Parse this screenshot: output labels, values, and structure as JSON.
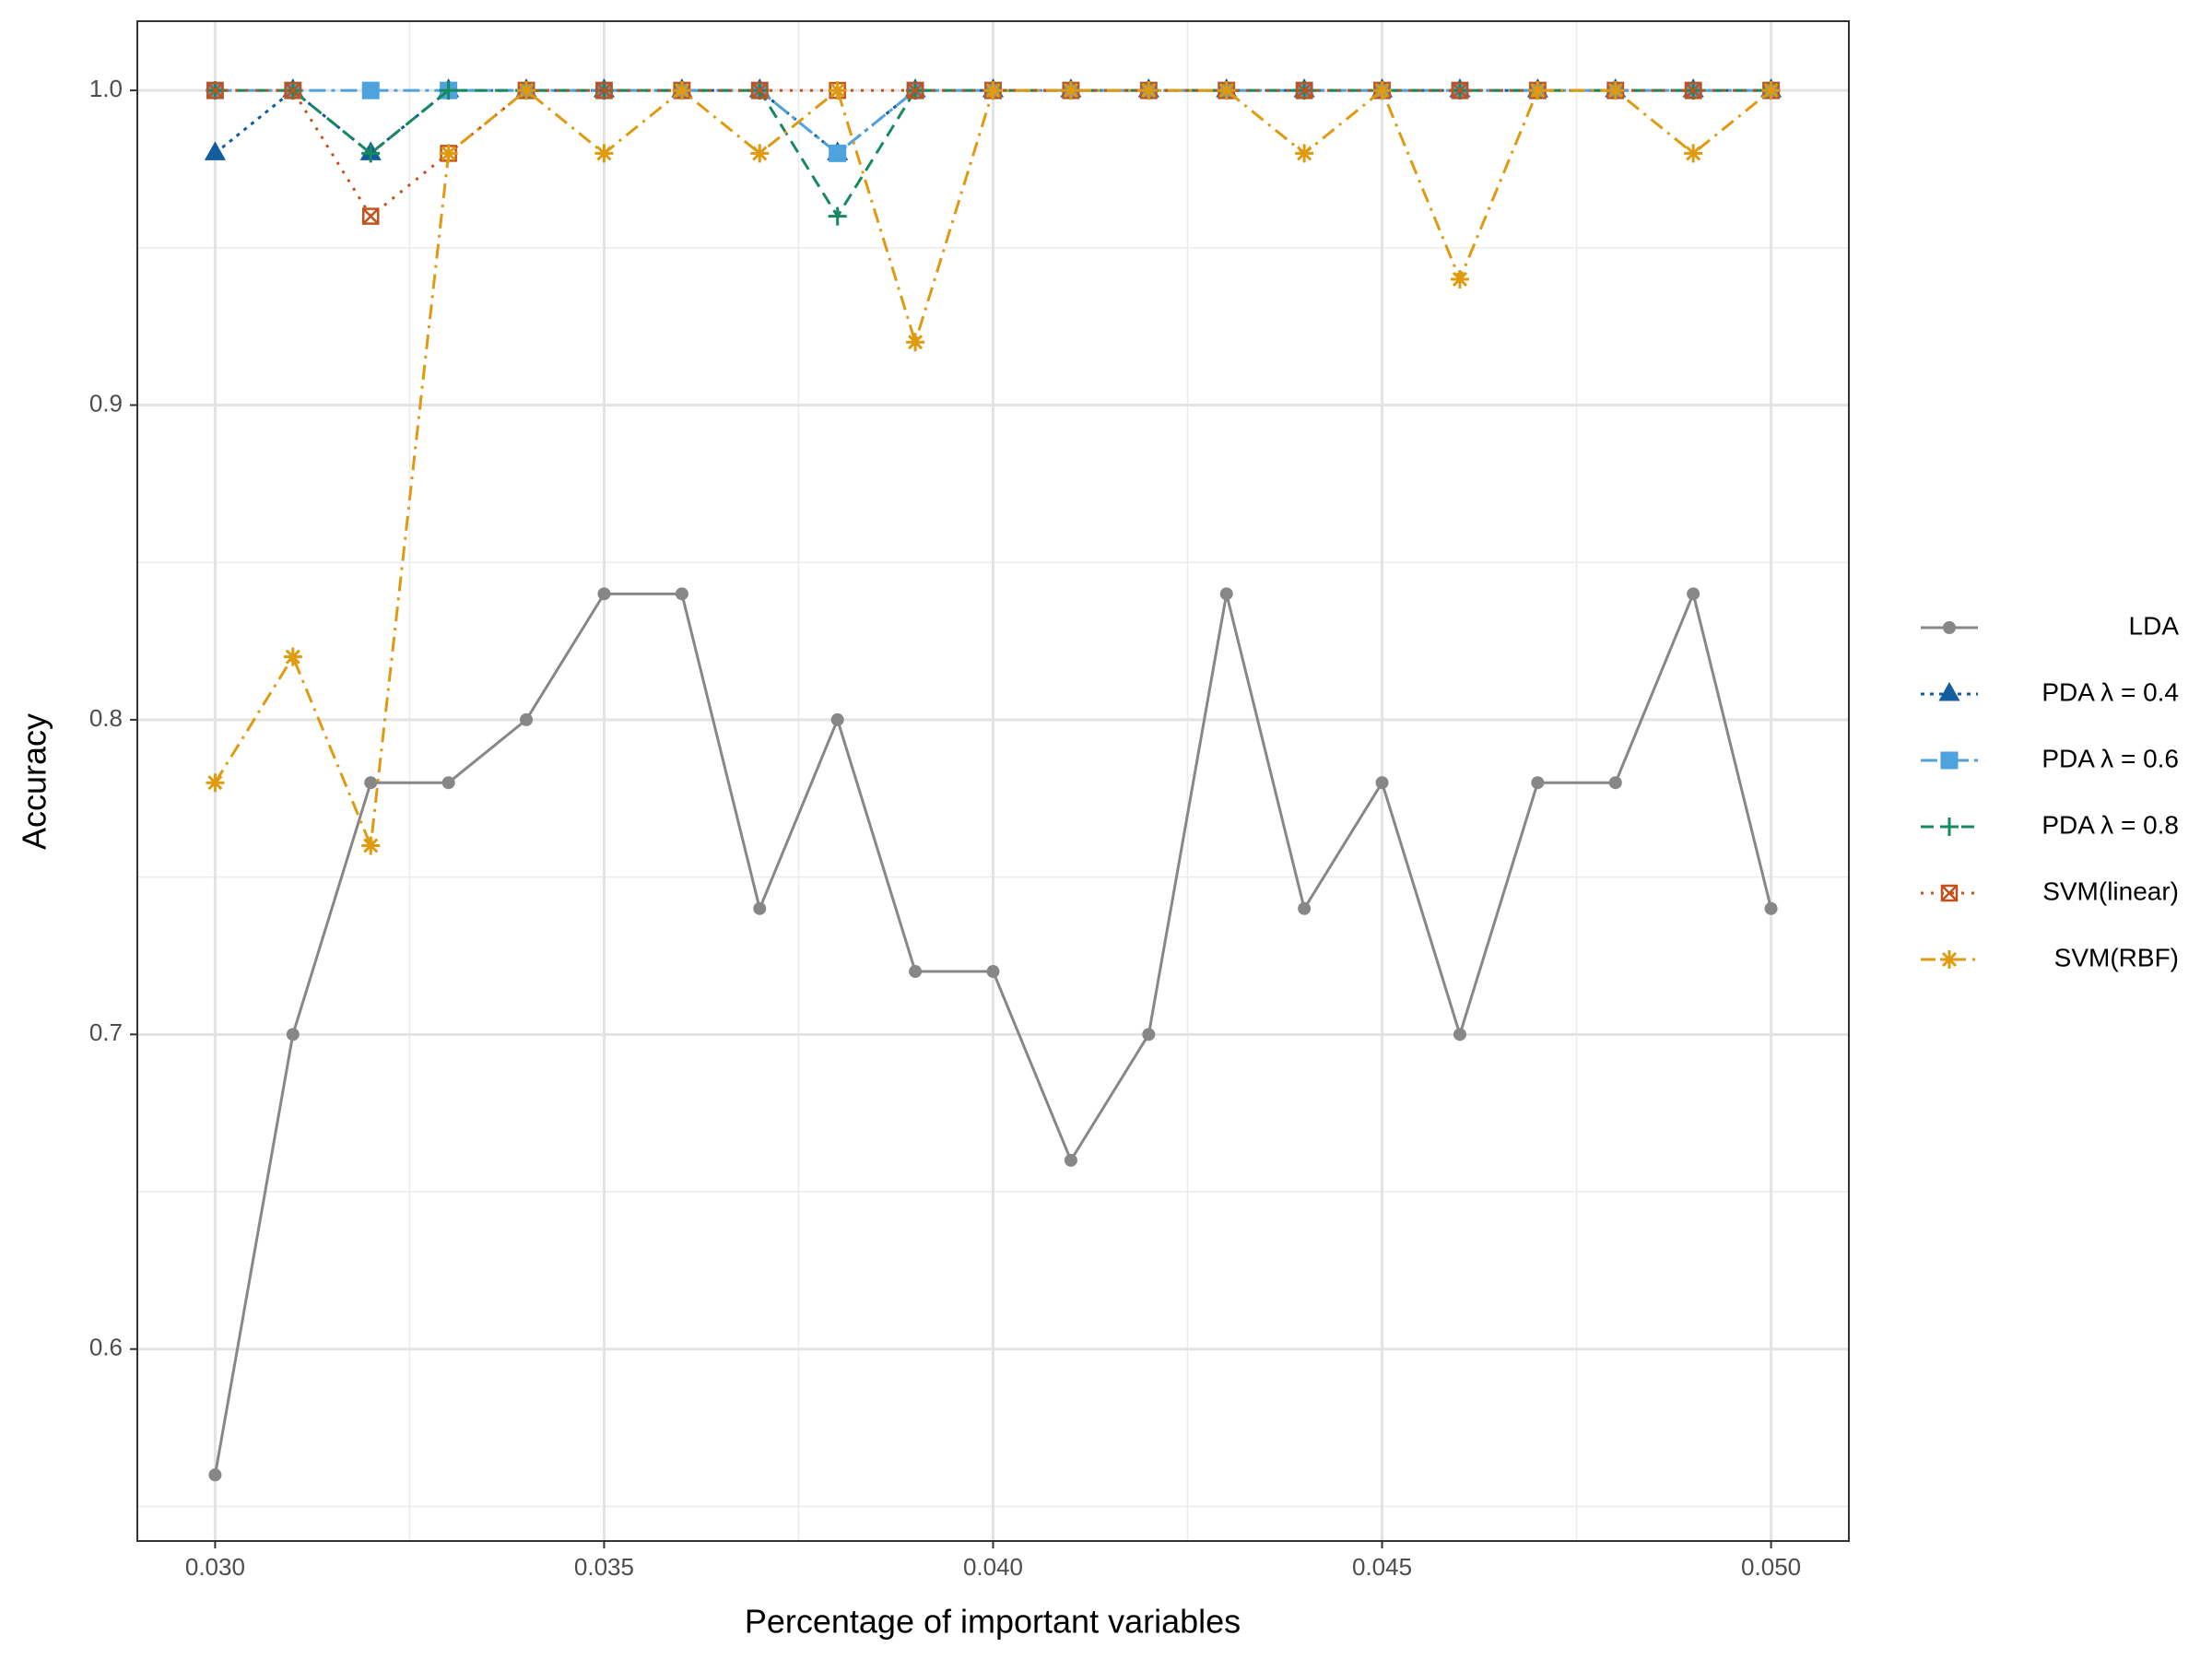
{
  "chart_data": {
    "type": "line",
    "xlabel": "Percentage of important variables",
    "ylabel": "Accuracy",
    "x": [
      0.03,
      0.031,
      0.032,
      0.033,
      0.034,
      0.035,
      0.036,
      0.037,
      0.038,
      0.039,
      0.04,
      0.041,
      0.042,
      0.043,
      0.044,
      0.045,
      0.046,
      0.047,
      0.048,
      0.049,
      0.05
    ],
    "xlim": [
      0.029,
      0.051
    ],
    "xticks": [
      {
        "value": 0.03,
        "label": "0.030"
      },
      {
        "value": 0.035,
        "label": "0.035"
      },
      {
        "value": 0.04,
        "label": "0.040"
      },
      {
        "value": 0.045,
        "label": "0.045"
      },
      {
        "value": 0.05,
        "label": "0.050"
      }
    ],
    "ylim": [
      0.539,
      1.022
    ],
    "yticks": [
      0.6,
      0.7,
      0.8,
      0.9,
      {
        "value": 1,
        "label": "1.0"
      }
    ],
    "grid": true,
    "legend_position": "right",
    "series": [
      {
        "name": "LDA",
        "color": "#878787",
        "values": [
          0.56,
          0.7,
          0.78,
          0.78,
          0.8,
          0.84,
          0.84,
          0.74,
          0.8,
          0.72,
          0.72,
          0.66,
          0.7,
          0.84,
          0.74,
          0.78,
          0.7,
          0.78,
          0.78,
          0.84,
          0.74
        ]
      },
      {
        "name": "PDA λ = 0.4",
        "color": "#135c9e",
        "values": [
          0.98,
          1,
          0.98,
          1,
          1,
          1,
          1,
          1,
          0.98,
          1,
          1,
          1,
          1,
          1,
          1,
          1,
          1,
          1,
          1,
          1,
          1
        ]
      },
      {
        "name": "PDA λ = 0.6",
        "color": "#4ea3de",
        "values": [
          1,
          1,
          1,
          1,
          1,
          1,
          1,
          1,
          0.98,
          1,
          1,
          1,
          1,
          1,
          1,
          1,
          1,
          1,
          1,
          1,
          1
        ]
      },
      {
        "name": "PDA λ = 0.8",
        "color": "#168a5e",
        "values": [
          1,
          1,
          0.98,
          1,
          1,
          1,
          1,
          1,
          0.96,
          1,
          1,
          1,
          1,
          1,
          1,
          1,
          1,
          1,
          1,
          1,
          1
        ]
      },
      {
        "name": "SVM(linear)",
        "color": "#c4501a",
        "values": [
          1,
          1,
          0.96,
          0.98,
          1,
          1,
          1,
          1,
          1,
          1,
          1,
          1,
          1,
          1,
          1,
          1,
          1,
          1,
          1,
          1,
          1
        ]
      },
      {
        "name": "SVM(RBF)",
        "color": "#e09a10",
        "values": [
          0.78,
          0.82,
          0.76,
          0.98,
          1,
          0.98,
          1,
          0.98,
          1,
          0.92,
          1,
          1,
          1,
          1,
          0.98,
          1,
          0.94,
          1,
          1,
          0.98,
          1
        ]
      }
    ]
  }
}
